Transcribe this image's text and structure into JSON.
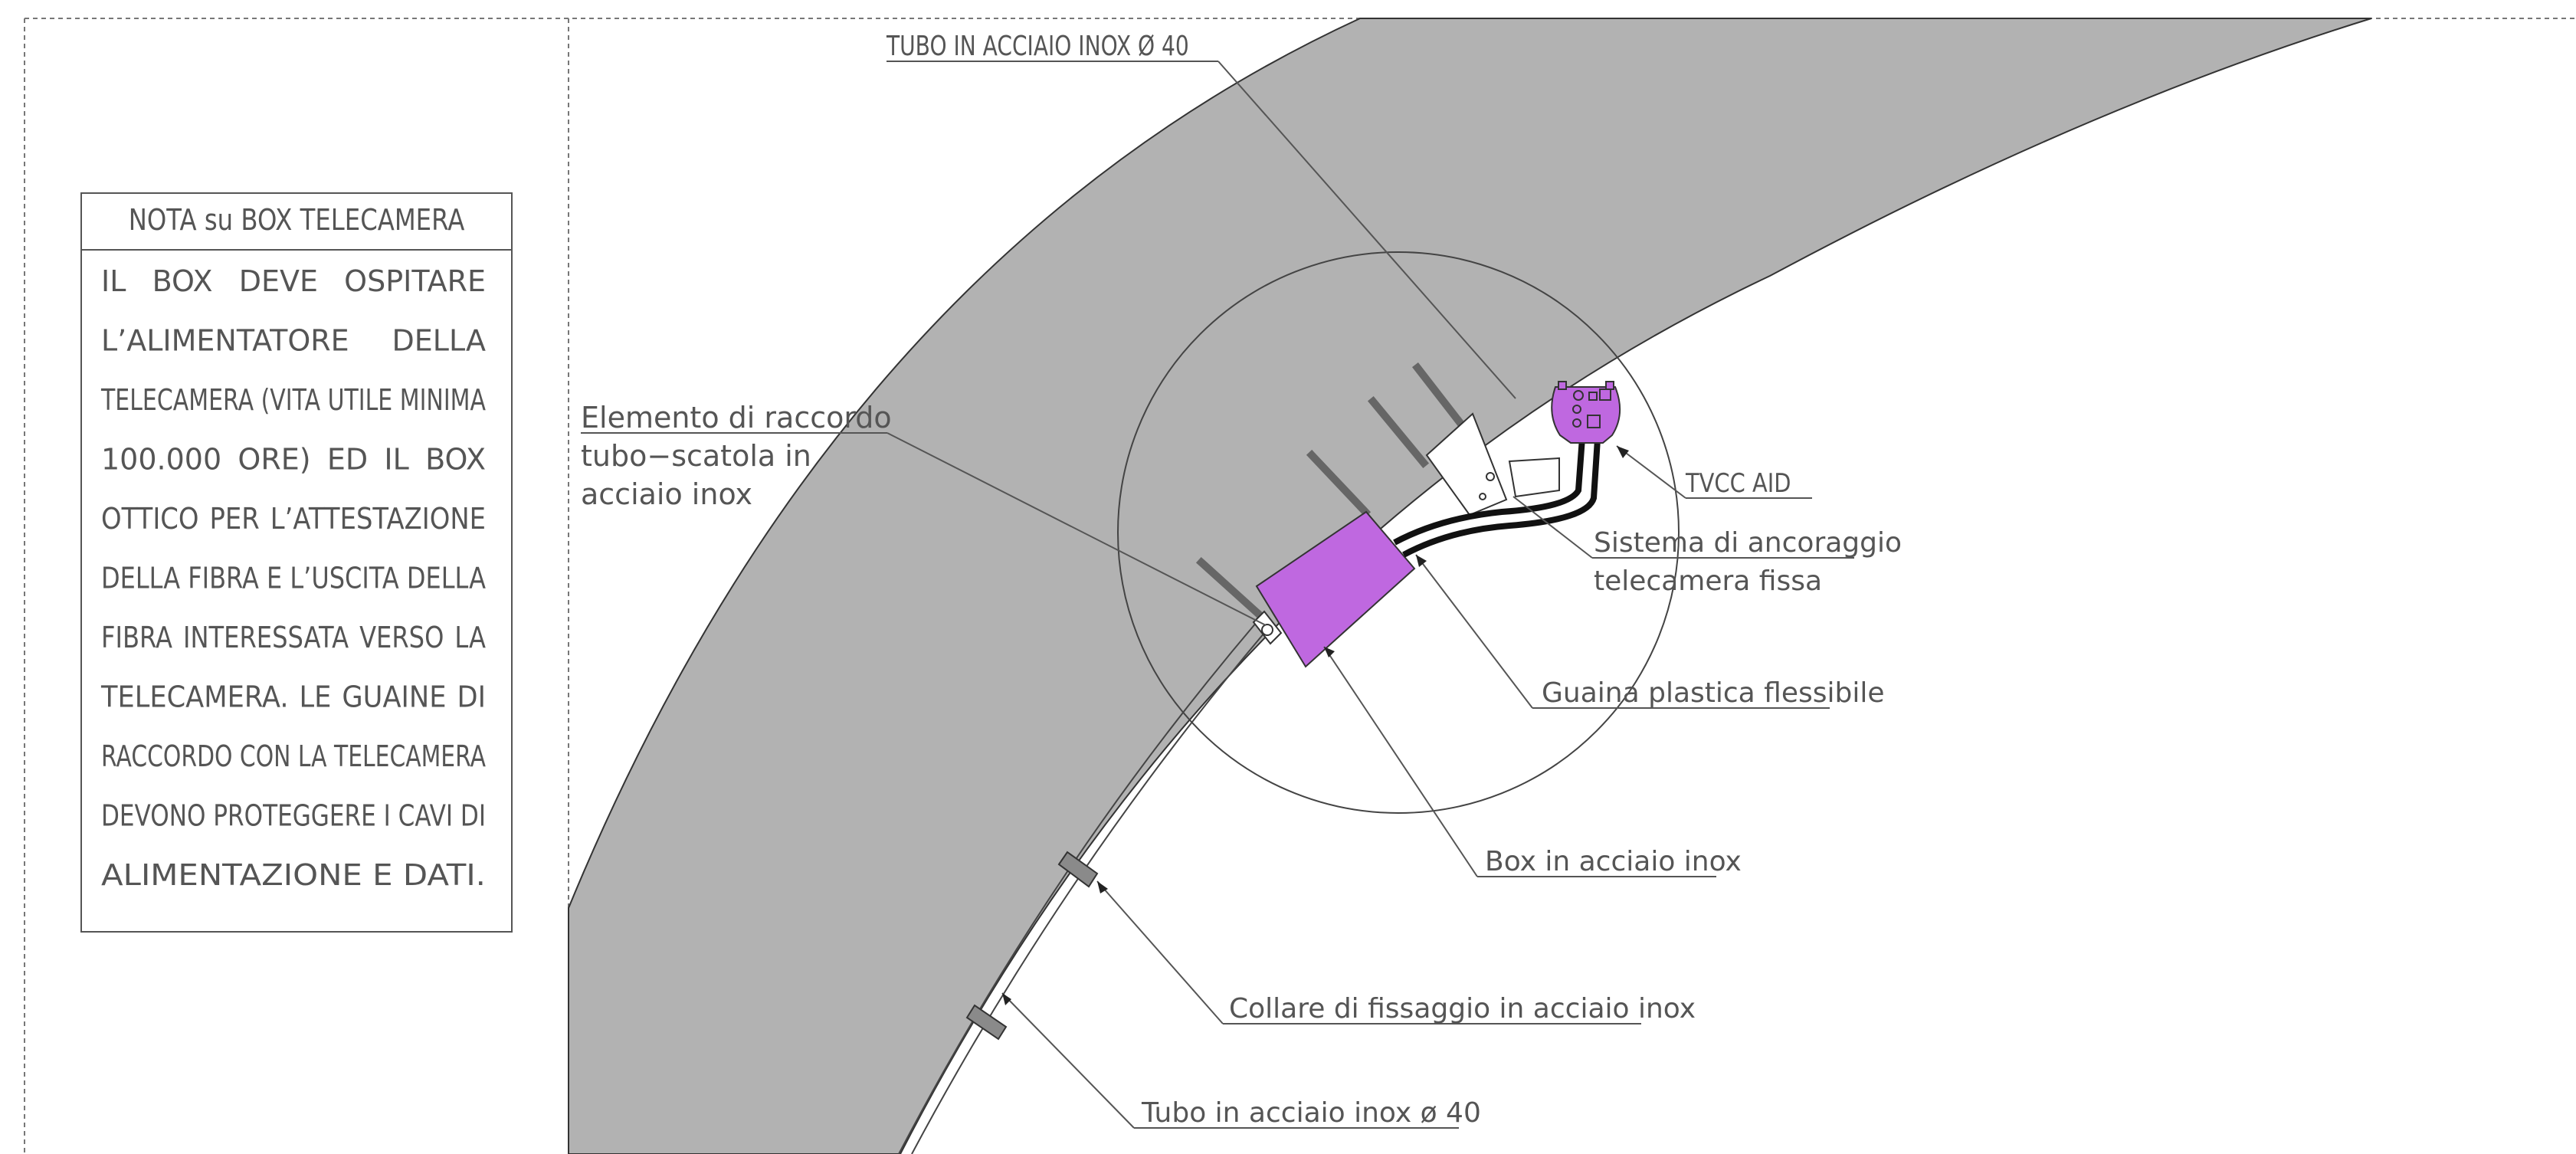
{
  "note": {
    "title": "NOTA su BOX TELECAMERA",
    "lines": [
      [
        "IL",
        "BOX",
        "DEVE",
        "OSPITARE"
      ],
      [
        "L’ALIMENTATORE",
        "DELLA"
      ],
      [
        "TELECAMERA (VITA UTILE MINIMA"
      ],
      [
        "100.000",
        "ORE)",
        "ED",
        "IL",
        "BOX"
      ],
      [
        "OTTICO",
        "PER",
        "L’ATTESTAZIONE"
      ],
      [
        "DELLA FIBRA E L’USCITA DELLA"
      ],
      [
        "FIBRA",
        "INTERESSATA",
        "VERSO",
        "LA"
      ],
      [
        "TELECAMERA.",
        "LE",
        "GUAINE",
        "DI"
      ],
      [
        "RACCORDO CON LA TELECAMERA"
      ],
      [
        "DEVONO PROTEGGERE I CAVI DI"
      ],
      [
        "ALIMENTAZIONE E DATI."
      ]
    ]
  },
  "labels": {
    "tubo_top": "TUBO IN ACCIAIO INOX Ø 40",
    "elemento_line1": "Elemento di raccordo",
    "elemento_line2": "tubo−scatola in",
    "elemento_line3": "acciaio inox",
    "tvcc": "TVCC AID",
    "sistema_line1": "Sistema di ancoraggio",
    "sistema_line2": "telecamera fissa",
    "guaina": "Guaina plastica flessibile",
    "box": "Box in acciaio inox",
    "collare": "Collare di fissaggio in acciaio inox",
    "tubo_bottom": "Tubo in acciaio inox ø 40"
  },
  "colors": {
    "tunnel_wall": "#b2b2b2",
    "device_fill": "#bf68e0",
    "line": "#555555"
  }
}
